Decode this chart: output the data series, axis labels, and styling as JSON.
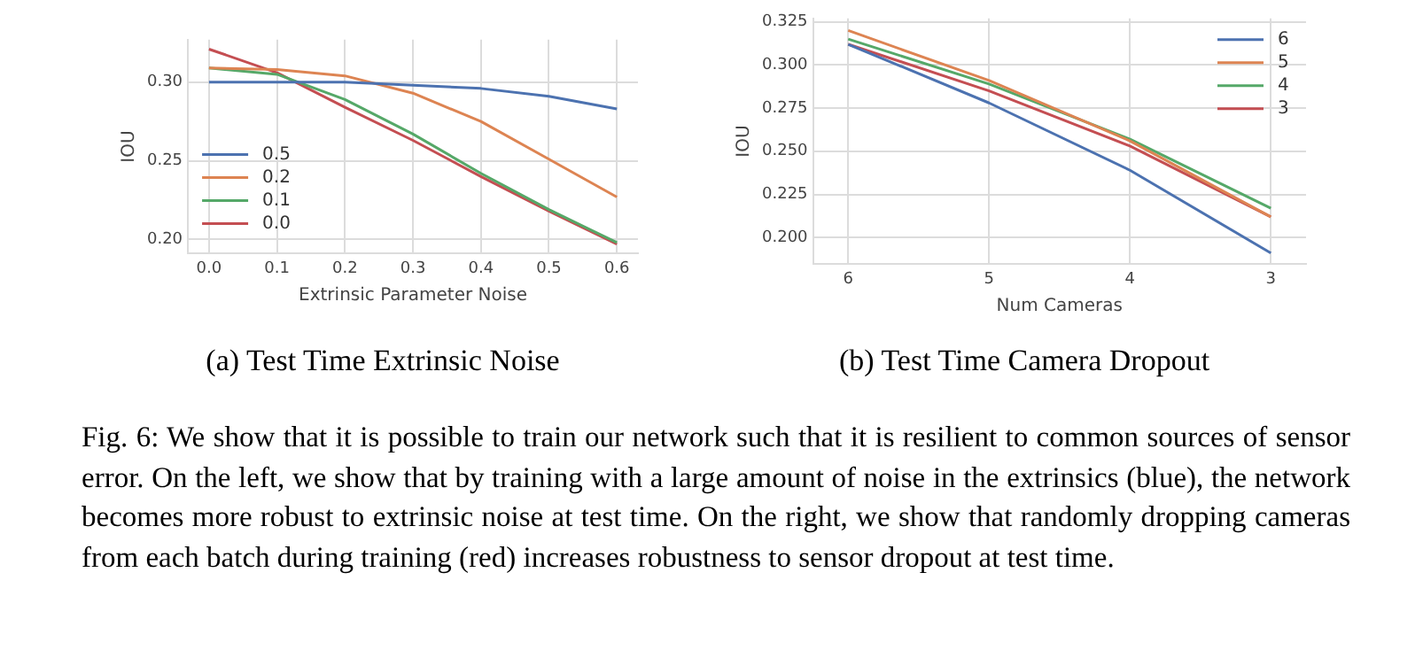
{
  "chart_data": [
    {
      "type": "line",
      "title": "(a) Test Time Extrinsic Noise",
      "xlabel": "Extrinsic Parameter Noise",
      "ylabel": "IOU",
      "x": [
        0,
        0.1,
        0.2,
        0.3,
        0.4,
        0.5,
        0.6
      ],
      "xlim": [
        -0.031,
        0.631
      ],
      "xticks": [
        {
          "value": 0,
          "label": "0.0"
        },
        {
          "value": 0.1,
          "label": "0.1"
        },
        {
          "value": 0.2,
          "label": "0.2"
        },
        {
          "value": 0.3,
          "label": "0.3"
        },
        {
          "value": 0.4,
          "label": "0.4"
        },
        {
          "value": 0.5,
          "label": "0.5"
        },
        {
          "value": 0.6,
          "label": "0.6"
        }
      ],
      "ylim": [
        0.191,
        0.327
      ],
      "yticks": [
        {
          "value": 0.2,
          "label": "0.20"
        },
        {
          "value": 0.25,
          "label": "0.25"
        },
        {
          "value": 0.3,
          "label": "0.30"
        }
      ],
      "grid": true,
      "legend": "bottom left",
      "annotations": [
        "Fig. 6: We show that it is possible to train our network such that it is resilient to common sources of sensor error. On the left, we show that by training with a large amount of noise in the extrinsics (blue), the network becomes more robust to extrinsic noise at test time. On the right, we show that randomly dropping cameras from each batch during training (red) increases robustness to sensor dropout at test time."
      ],
      "series": [
        {
          "name": "0.5",
          "color": "#4c72b0",
          "values": [
            0.3,
            0.3,
            0.3,
            0.298,
            0.296,
            0.291,
            0.283
          ]
        },
        {
          "name": "0.2",
          "color": "#dd8452",
          "values": [
            0.309,
            0.308,
            0.304,
            0.293,
            0.275,
            0.251,
            0.227
          ]
        },
        {
          "name": "0.1",
          "color": "#55a868",
          "values": [
            0.309,
            0.305,
            0.289,
            0.267,
            0.242,
            0.219,
            0.198
          ]
        },
        {
          "name": "0.0",
          "color": "#c44e52",
          "values": [
            0.321,
            0.306,
            0.284,
            0.263,
            0.24,
            0.218,
            0.197
          ]
        }
      ]
    },
    {
      "type": "line",
      "title": "(b) Test Time Camera Dropout",
      "xlabel": "Num Cameras",
      "ylabel": "IOU",
      "x": [
        6,
        5,
        4,
        3
      ],
      "xlim": [
        6.25,
        2.75
      ],
      "xticks": [
        6,
        5,
        4,
        3
      ],
      "ylim": [
        0.1845,
        0.327
      ],
      "yticks": [
        {
          "value": 0.2,
          "label": "0.200"
        },
        {
          "value": 0.225,
          "label": "0.225"
        },
        {
          "value": 0.25,
          "label": "0.250"
        },
        {
          "value": 0.275,
          "label": "0.275"
        },
        {
          "value": 0.3,
          "label": "0.300"
        },
        {
          "value": 0.325,
          "label": "0.325"
        }
      ],
      "grid": true,
      "legend": "top right",
      "series": [
        {
          "name": "6",
          "color": "#4c72b0",
          "values": [
            0.312,
            0.278,
            0.239,
            0.191
          ]
        },
        {
          "name": "5",
          "color": "#dd8452",
          "values": [
            0.32,
            0.291,
            0.256,
            0.212
          ]
        },
        {
          "name": "4",
          "color": "#55a868",
          "values": [
            0.315,
            0.289,
            0.257,
            0.217
          ]
        },
        {
          "name": "3",
          "color": "#c44e52",
          "values": [
            0.312,
            0.285,
            0.253,
            0.212
          ]
        }
      ]
    }
  ]
}
